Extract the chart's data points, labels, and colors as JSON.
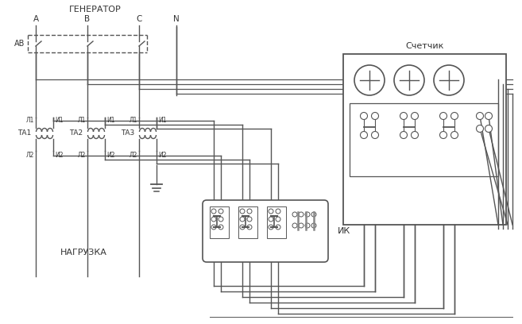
{
  "bg_color": "#ffffff",
  "line_color": "#555555",
  "line_width": 1.0,
  "fig_width": 6.57,
  "fig_height": 4.08,
  "dpi": 100,
  "texts": {
    "generator": "ГЕНЕРАТОР",
    "A": "А",
    "B": "В",
    "C": "С",
    "N": "N",
    "AB": "АВ",
    "TA1": "ТА1",
    "TA2": "ТА2",
    "TA3": "ТА3",
    "L1": "Л1",
    "I1": "И1",
    "L2": "Л2",
    "I2": "И2",
    "nagr": "НАГРУЗКА",
    "IK": "ИК",
    "schetchik": "Счетчик"
  }
}
